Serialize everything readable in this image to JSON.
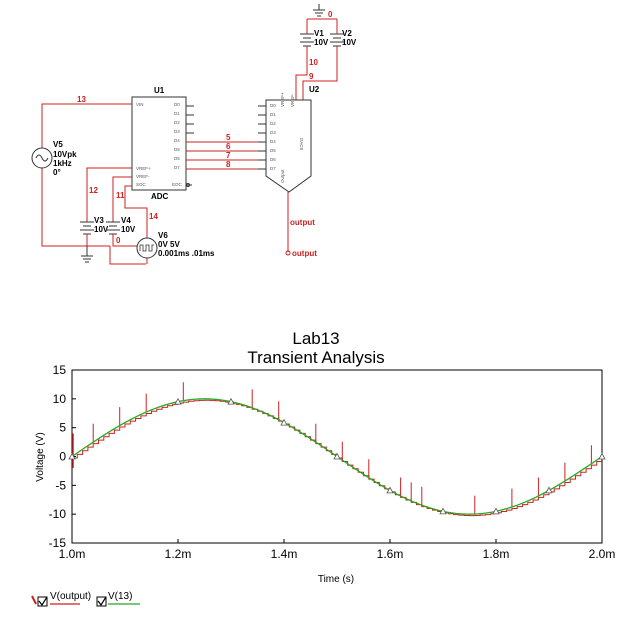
{
  "schematic": {
    "u1": {
      "name": "U1",
      "type": "ADC",
      "left_pins": [
        "VIN",
        "VREF+",
        "VREF-",
        "SOC"
      ],
      "right_pins": [
        "D0",
        "D1",
        "D2",
        "D3",
        "D4",
        "D5",
        "D6",
        "D7",
        "EOC"
      ]
    },
    "u2": {
      "name": "U2",
      "type": "DAC8",
      "top_pins": [
        "VREF+",
        "VREF-"
      ],
      "left_pins": [
        "D0",
        "D1",
        "D2",
        "D3",
        "D4",
        "D5",
        "D6",
        "D7"
      ],
      "out_pin": "Output"
    },
    "v1": {
      "name": "V1",
      "value": "10V"
    },
    "v2": {
      "name": "V2",
      "value": "10V"
    },
    "v3": {
      "name": "V3",
      "value": "10V"
    },
    "v4": {
      "name": "V4",
      "value": "10V"
    },
    "v5": {
      "name": "V5",
      "line1": "10Vpk",
      "line2": "1kHz",
      "line3": "0°"
    },
    "v6": {
      "name": "V6",
      "line1": "0V 5V",
      "line2": "0.001ms .01ms"
    },
    "nets": {
      "n0a": "0",
      "n0b": "0",
      "n5": "5",
      "n6": "6",
      "n7": "7",
      "n8": "8",
      "n9": "9",
      "n10": "10",
      "n11": "11",
      "n12": "12",
      "n13": "13",
      "n14": "14"
    },
    "output_label": "output",
    "probe_label": "output"
  },
  "chart_data": {
    "type": "line",
    "title": "Lab13",
    "subtitle": "Transient Analysis",
    "xlabel": "Time (s)",
    "ylabel": "Voltage (V)",
    "xlim": [
      0.001,
      0.002
    ],
    "ylim": [
      -15,
      15
    ],
    "x_ticks": [
      0.001,
      0.0012,
      0.0014,
      0.0016,
      0.0018,
      0.002
    ],
    "x_tick_labels": [
      "1.0m",
      "1.2m",
      "1.4m",
      "1.6m",
      "1.8m",
      "2.0m"
    ],
    "y_ticks": [
      15,
      10,
      5,
      0,
      -5,
      -10,
      -15
    ],
    "y_tick_labels": [
      "15",
      "10",
      "5",
      "0",
      "-5",
      "-10",
      "-15"
    ],
    "grid": false,
    "series": [
      {
        "name": "V(output)",
        "color": "#cc2222",
        "kind": "staircase",
        "amplitude": 10,
        "frequency_hz": 1000,
        "step_s": 1e-05
      },
      {
        "name": "V(13)",
        "color": "#22aa22",
        "kind": "sine",
        "amplitude": 10,
        "frequency_hz": 1000,
        "x": [
          0.001,
          0.00105,
          0.0011,
          0.00115,
          0.0012,
          0.00125,
          0.0013,
          0.00135,
          0.0014,
          0.00145,
          0.0015,
          0.00155,
          0.0016,
          0.00165,
          0.0017,
          0.00175,
          0.0018,
          0.00185,
          0.0019,
          0.00195,
          0.002
        ],
        "y": [
          0,
          3.09,
          5.88,
          8.09,
          9.51,
          10,
          9.51,
          8.09,
          5.88,
          3.09,
          0,
          -3.09,
          -5.88,
          -8.09,
          -9.51,
          -10,
          -9.51,
          -8.09,
          -5.88,
          -3.09,
          0
        ],
        "markers_x": [
          0.001,
          0.0012,
          0.0013,
          0.0014,
          0.0015,
          0.0016,
          0.0017,
          0.0018,
          0.0019,
          0.002
        ]
      }
    ],
    "spike_x": [
      0.00104,
      0.00109,
      0.00114,
      0.00121,
      0.00134,
      0.00139,
      0.00146,
      0.00151,
      0.00156,
      0.00162,
      0.00164,
      0.00166,
      0.00176,
      0.00183,
      0.00188,
      0.00193,
      0.00198
    ],
    "legend": [
      {
        "label": "V(output)",
        "color": "#cc2222",
        "checked": true
      },
      {
        "label": "V(13)",
        "color": "#22aa22",
        "checked": true
      }
    ]
  }
}
